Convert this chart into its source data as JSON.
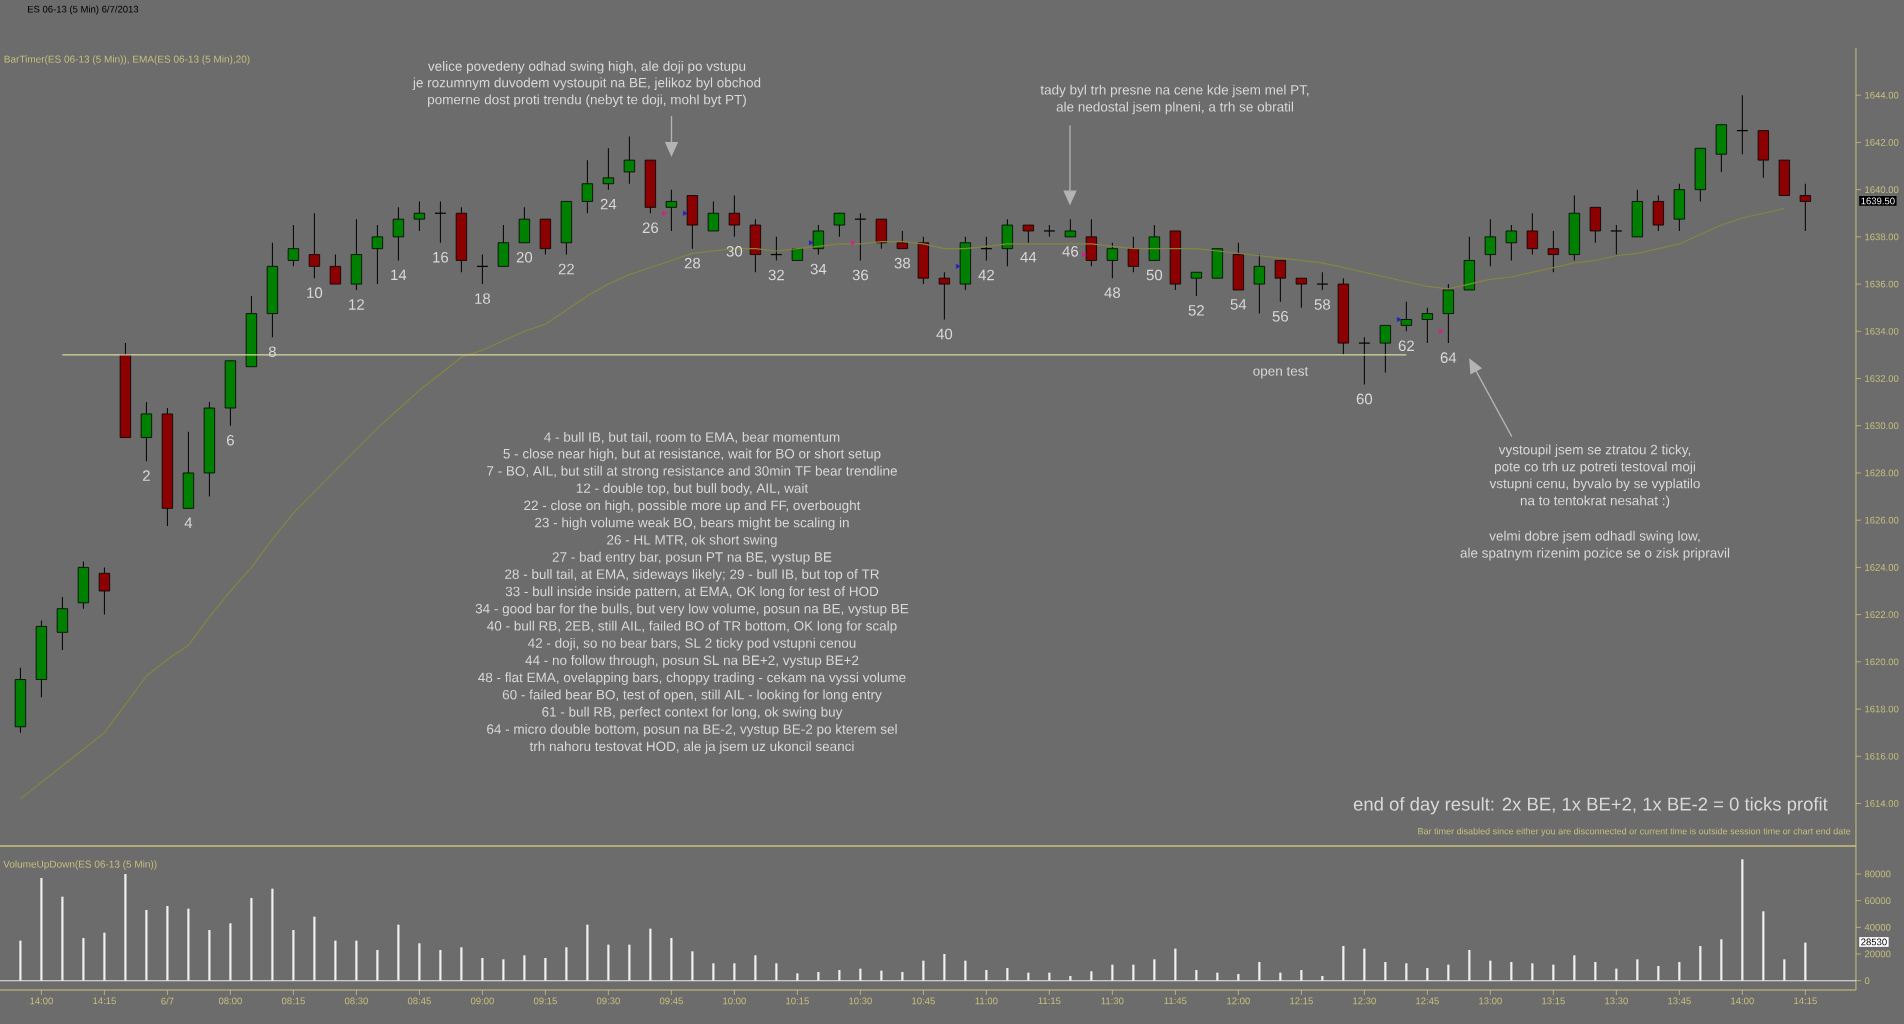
{
  "chart_data": [
    {
      "type": "candlestick",
      "title": "ES 06-13 (5 Min)  6/7/2013",
      "subtitle": "BarTimer(ES 06-13 (5 Min)), EMA(ES 06-13 (5 Min),20)",
      "categories": [
        null,
        null,
        null,
        null,
        null,
        null,
        null,
        null,
        null,
        null,
        null,
        null,
        null,
        null,
        null,
        null,
        null,
        null,
        null,
        null,
        null,
        null,
        null,
        null,
        null,
        null,
        null,
        null,
        null,
        null,
        null,
        null,
        null,
        null,
        null,
        null,
        null,
        null,
        null,
        null,
        null,
        null,
        null,
        null,
        null,
        null,
        null,
        null,
        null,
        null,
        null,
        null,
        null,
        null,
        null,
        null,
        null,
        null,
        null,
        null,
        null,
        null,
        null,
        null,
        null,
        null,
        null,
        null,
        null,
        null,
        null,
        null,
        null,
        null,
        null,
        null,
        null,
        null,
        null,
        null,
        null,
        null,
        null,
        null,
        null,
        null
      ],
      "ohlc": [
        [
          1617.25,
          1619.75,
          1617.0,
          1619.25
        ],
        [
          1619.25,
          1621.75,
          1618.5,
          1621.5
        ],
        [
          1621.25,
          1622.75,
          1620.5,
          1622.25
        ],
        [
          1622.5,
          1624.25,
          1622.25,
          1624.0
        ],
        [
          1623.75,
          1624.0,
          1622.0,
          1623.0
        ],
        [
          1633.0,
          1633.5,
          1629.5,
          1629.5
        ],
        [
          1629.5,
          1631.0,
          1628.5,
          1630.5
        ],
        [
          1630.5,
          1630.75,
          1625.75,
          1626.5
        ],
        [
          1626.5,
          1629.75,
          1626.5,
          1628.0
        ],
        [
          1628.0,
          1631.0,
          1627.0,
          1630.75
        ],
        [
          1630.75,
          1632.75,
          1630.0,
          1632.75
        ],
        [
          1632.5,
          1635.5,
          1632.5,
          1634.75
        ],
        [
          1634.75,
          1637.75,
          1633.75,
          1636.75
        ],
        [
          1637.0,
          1638.5,
          1636.75,
          1637.5
        ],
        [
          1637.25,
          1639.0,
          1636.25,
          1636.75
        ],
        [
          1636.75,
          1637.25,
          1636.0,
          1636.0
        ],
        [
          1636.0,
          1638.75,
          1635.75,
          1637.25
        ],
        [
          1637.5,
          1638.5,
          1636.0,
          1638.0
        ],
        [
          1638.0,
          1639.25,
          1637.0,
          1638.75
        ],
        [
          1638.75,
          1639.5,
          1638.25,
          1639.0
        ],
        [
          1639.0,
          1639.5,
          1637.75,
          1639.0
        ],
        [
          1639.0,
          1639.25,
          1636.5,
          1637.0
        ],
        [
          1636.75,
          1637.25,
          1636.0,
          1636.75
        ],
        [
          1636.75,
          1638.5,
          1636.75,
          1637.75
        ],
        [
          1637.75,
          1639.25,
          1637.75,
          1638.75
        ],
        [
          1638.75,
          1638.75,
          1637.25,
          1637.5
        ],
        [
          1637.75,
          1639.5,
          1637.25,
          1639.5
        ],
        [
          1639.5,
          1641.25,
          1639.0,
          1640.25
        ],
        [
          1640.25,
          1641.75,
          1640.0,
          1640.5
        ],
        [
          1640.75,
          1642.25,
          1640.25,
          1641.25
        ],
        [
          1641.25,
          1641.25,
          1639.0,
          1639.25
        ],
        [
          1639.25,
          1640.0,
          1638.25,
          1639.5
        ],
        [
          1639.75,
          1639.75,
          1637.5,
          1638.5
        ],
        [
          1638.25,
          1639.5,
          1638.25,
          1639.0
        ],
        [
          1639.0,
          1639.75,
          1638.0,
          1638.5
        ],
        [
          1638.5,
          1638.75,
          1636.5,
          1637.25
        ],
        [
          1637.25,
          1638.0,
          1637.0,
          1637.25
        ],
        [
          1637.0,
          1637.5,
          1637.0,
          1637.5
        ],
        [
          1637.5,
          1638.5,
          1637.25,
          1638.25
        ],
        [
          1638.5,
          1639.0,
          1638.0,
          1639.0
        ],
        [
          1638.75,
          1639.0,
          1637.0,
          1638.75
        ],
        [
          1638.75,
          1638.75,
          1637.5,
          1637.75
        ],
        [
          1637.75,
          1638.25,
          1637.5,
          1637.5
        ],
        [
          1637.75,
          1638.0,
          1636.0,
          1636.25
        ],
        [
          1636.25,
          1636.5,
          1634.5,
          1636.0
        ],
        [
          1636.0,
          1638.0,
          1635.75,
          1637.75
        ],
        [
          1637.5,
          1638.0,
          1637.0,
          1637.5
        ],
        [
          1637.5,
          1638.75,
          1636.75,
          1638.5
        ],
        [
          1638.5,
          1638.5,
          1637.75,
          1638.25
        ],
        [
          1638.25,
          1638.5,
          1638.0,
          1638.25
        ],
        [
          1638.0,
          1638.75,
          1638.0,
          1638.25
        ],
        [
          1638.0,
          1638.75,
          1636.75,
          1637.0
        ],
        [
          1637.0,
          1637.75,
          1636.25,
          1637.5
        ],
        [
          1637.5,
          1638.0,
          1636.5,
          1636.75
        ],
        [
          1637.0,
          1638.5,
          1637.0,
          1638.0
        ],
        [
          1638.25,
          1638.25,
          1635.75,
          1636.0
        ],
        [
          1636.25,
          1636.5,
          1635.5,
          1636.5
        ],
        [
          1636.25,
          1637.5,
          1636.25,
          1637.5
        ],
        [
          1637.25,
          1637.75,
          1635.75,
          1635.75
        ],
        [
          1636.0,
          1637.25,
          1634.75,
          1636.75
        ],
        [
          1637.0,
          1637.0,
          1635.25,
          1636.25
        ],
        [
          1636.25,
          1636.25,
          1635.0,
          1636.0
        ],
        [
          1636.0,
          1636.5,
          1635.75,
          1636.0
        ],
        [
          1636.0,
          1636.25,
          1633.0,
          1633.5
        ],
        [
          1633.5,
          1633.75,
          1631.75,
          1633.5
        ],
        [
          1633.5,
          1634.25,
          1632.25,
          1634.25
        ],
        [
          1634.25,
          1635.25,
          1634.0,
          1634.5
        ],
        [
          1634.5,
          1635.0,
          1633.5,
          1634.75
        ],
        [
          1634.75,
          1636.0,
          1633.5,
          1635.75
        ],
        [
          1635.75,
          1638.0,
          1635.75,
          1637.0
        ],
        [
          1637.25,
          1638.75,
          1636.75,
          1638.0
        ],
        [
          1637.75,
          1638.5,
          1637.0,
          1638.25
        ],
        [
          1638.25,
          1639.0,
          1637.25,
          1637.5
        ],
        [
          1637.5,
          1638.25,
          1636.5,
          1637.25
        ],
        [
          1637.25,
          1639.75,
          1637.0,
          1639.0
        ],
        [
          1639.25,
          1639.25,
          1637.75,
          1638.25
        ],
        [
          1638.25,
          1638.5,
          1637.25,
          1638.25
        ],
        [
          1638.0,
          1640.0,
          1638.0,
          1639.5
        ],
        [
          1639.5,
          1639.75,
          1638.25,
          1638.5
        ],
        [
          1638.75,
          1640.25,
          1638.25,
          1640.0
        ],
        [
          1640.0,
          1641.75,
          1639.5,
          1641.75
        ],
        [
          1641.5,
          1642.75,
          1640.75,
          1642.75
        ],
        [
          1642.5,
          1644.0,
          1641.5,
          1642.5
        ],
        [
          1642.5,
          1642.5,
          1640.5,
          1641.25
        ],
        [
          1641.25,
          1641.25,
          1639.75,
          1639.75
        ],
        [
          1639.75,
          1640.25,
          1638.25,
          1639.5
        ]
      ],
      "colors": [
        "#008000",
        "#008000",
        "#008000",
        "#008000",
        "#8b0000",
        "#8b0000",
        "#008000",
        "#8b0000",
        "#008000",
        "#008000",
        "#008000",
        "#008000",
        "#008000",
        "#008000",
        "#8b0000",
        "#8b0000",
        "#008000",
        "#008000",
        "#008000",
        "#008000",
        "#000000",
        "#8b0000",
        "#000000",
        "#008000",
        "#008000",
        "#8b0000",
        "#008000",
        "#008000",
        "#008000",
        "#008000",
        "#8b0000",
        "#008000",
        "#8b0000",
        "#008000",
        "#8b0000",
        "#8b0000",
        "#000000",
        "#008000",
        "#008000",
        "#008000",
        "#000000",
        "#8b0000",
        "#8b0000",
        "#8b0000",
        "#8b0000",
        "#008000",
        "#000000",
        "#008000",
        "#8b0000",
        "#000000",
        "#008000",
        "#8b0000",
        "#008000",
        "#8b0000",
        "#008000",
        "#8b0000",
        "#008000",
        "#008000",
        "#8b0000",
        "#008000",
        "#8b0000",
        "#8b0000",
        "#000000",
        "#8b0000",
        "#000000",
        "#008000",
        "#008000",
        "#008000",
        "#008000",
        "#008000",
        "#008000",
        "#008000",
        "#8b0000",
        "#8b0000",
        "#008000",
        "#8b0000",
        "#000000",
        "#008000",
        "#8b0000",
        "#008000",
        "#008000",
        "#008000",
        "#000000",
        "#8b0000",
        "#8b0000",
        "#8b0000"
      ],
      "value_labels": [
        null,
        null,
        null,
        null,
        null,
        null,
        "2",
        null,
        "4",
        null,
        "6",
        null,
        "8",
        null,
        "10",
        null,
        "12",
        null,
        "14",
        null,
        "16",
        null,
        "18",
        null,
        "20",
        null,
        "22",
        null,
        "24",
        null,
        "26",
        null,
        "28",
        null,
        "30",
        null,
        "32",
        null,
        "34",
        null,
        "36",
        null,
        "38",
        null,
        "40",
        null,
        "42",
        null,
        "44",
        null,
        "46",
        null,
        "48",
        null,
        "50",
        null,
        "52",
        null,
        "54",
        null,
        "56",
        null,
        "58",
        null,
        "60",
        null,
        "62",
        null,
        "64",
        null,
        null,
        null,
        null,
        null,
        null,
        null,
        null,
        null,
        null,
        null,
        null,
        null,
        null,
        null,
        null,
        null
      ],
      "series": [
        {
          "type": "line",
          "color": "#858542",
          "values": [
            1614.2,
            1614.9,
            1615.6,
            1616.3,
            1617.0,
            1618.2,
            1619.4,
            1620.1,
            1620.7,
            1621.9,
            1623.0,
            1624.0,
            1625.2,
            1626.3,
            1627.2,
            1628.1,
            1629.0,
            1629.9,
            1630.7,
            1631.5,
            1632.2,
            1632.9,
            1633.2,
            1633.6,
            1634.0,
            1634.3,
            1634.9,
            1635.5,
            1636.0,
            1636.4,
            1636.7,
            1637.0,
            1637.3,
            1637.4,
            1637.5,
            1637.5,
            1637.4,
            1637.5,
            1637.6,
            1637.7,
            1637.7,
            1637.8,
            1637.8,
            1637.7,
            1637.5,
            1637.5,
            1637.6,
            1637.7,
            1637.7,
            1637.7,
            1637.7,
            1637.7,
            1637.6,
            1637.5,
            1637.5,
            1637.5,
            1637.5,
            1637.4,
            1637.3,
            1637.2,
            1637.1,
            1637.0,
            1636.9,
            1636.7,
            1636.5,
            1636.3,
            1636.1,
            1635.9,
            1635.8,
            1636.0,
            1636.2,
            1636.3,
            1636.5,
            1636.7,
            1636.9,
            1637.0,
            1637.2,
            1637.3,
            1637.5,
            1637.7,
            1638.1,
            1638.5,
            1638.8,
            1639.0,
            1639.2,
            null
          ]
        },
        {
          "type": "line",
          "color": "#d8d8a0",
          "values": [
            null,
            null,
            1633.0,
            1633.0,
            1633.0,
            1633.0,
            1633.0,
            1633.0,
            1633.0,
            1633.0,
            1633.0,
            1633.0,
            1633.0,
            1633.0,
            1633.0,
            1633.0,
            1633.0,
            1633.0,
            1633.0,
            1633.0,
            1633.0,
            1633.0,
            1633.0,
            1633.0,
            1633.0,
            1633.0,
            1633.0,
            1633.0,
            1633.0,
            1633.0,
            1633.0,
            1633.0,
            1633.0,
            1633.0,
            1633.0,
            1633.0,
            1633.0,
            1633.0,
            1633.0,
            1633.0,
            1633.0,
            1633.0,
            1633.0,
            1633.0,
            1633.0,
            1633.0,
            1633.0,
            1633.0,
            1633.0,
            1633.0,
            1633.0,
            1633.0,
            1633.0,
            1633.0,
            1633.0,
            1633.0,
            1633.0,
            1633.0,
            1633.0,
            1633.0,
            1633.0,
            1633.0,
            1633.0,
            1633.0,
            1633.0,
            1633.0,
            1633.0,
            null,
            null,
            null,
            null,
            null,
            null,
            null,
            null,
            null,
            null,
            null,
            null,
            null,
            null,
            null,
            null,
            null,
            null,
            null
          ]
        },
        {
          "type": "scatter",
          "color": "#e0188f",
          "marker": "triangle",
          "values": [
            null,
            null,
            null,
            null,
            null,
            null,
            null,
            null,
            null,
            null,
            null,
            null,
            null,
            null,
            null,
            null,
            null,
            null,
            null,
            null,
            null,
            null,
            null,
            null,
            null,
            null,
            null,
            null,
            null,
            null,
            null,
            1639.0,
            null,
            null,
            null,
            null,
            null,
            null,
            null,
            null,
            1637.75,
            null,
            null,
            null,
            null,
            null,
            null,
            null,
            null,
            null,
            null,
            1637.25,
            null,
            null,
            null,
            null,
            null,
            null,
            null,
            null,
            null,
            null,
            null,
            null,
            null,
            null,
            null,
            null,
            1634.0,
            null,
            null,
            null,
            null,
            null,
            null,
            null,
            null,
            null,
            null,
            null,
            null,
            null,
            null,
            null,
            null,
            null
          ]
        },
        {
          "type": "scatter",
          "color": "#1c1cd0",
          "marker": "triangle",
          "values": [
            null,
            null,
            null,
            null,
            null,
            null,
            null,
            null,
            null,
            null,
            null,
            null,
            null,
            null,
            null,
            null,
            null,
            null,
            null,
            null,
            null,
            null,
            null,
            null,
            null,
            null,
            null,
            null,
            null,
            null,
            null,
            null,
            1639.0,
            null,
            null,
            null,
            null,
            null,
            1637.75,
            null,
            null,
            null,
            null,
            null,
            null,
            1636.75,
            null,
            null,
            null,
            null,
            null,
            null,
            null,
            null,
            null,
            null,
            null,
            null,
            null,
            null,
            null,
            null,
            null,
            null,
            null,
            null,
            1634.5,
            null,
            null,
            null,
            null,
            null,
            null,
            null,
            null,
            null,
            null,
            null,
            null,
            null,
            null,
            null,
            null,
            null,
            null,
            null
          ]
        }
      ],
      "ylim": [
        1612.2,
        1646
      ],
      "yticks": [
        {
          "value": 1614,
          "label": "1614.00"
        },
        {
          "value": 1616,
          "label": "1616.00"
        },
        {
          "value": 1618,
          "label": "1618.00"
        },
        {
          "value": 1620,
          "label": "1620.00"
        },
        {
          "value": 1622,
          "label": "1622.00"
        },
        {
          "value": 1624,
          "label": "1624.00"
        },
        {
          "value": 1626,
          "label": "1626.00"
        },
        {
          "value": 1628,
          "label": "1628.00"
        },
        {
          "value": 1630,
          "label": "1630.00"
        },
        {
          "value": 1632,
          "label": "1632.00"
        },
        {
          "value": 1634,
          "label": "1634.00"
        },
        {
          "value": 1636,
          "label": "1636.00"
        },
        {
          "value": 1638,
          "label": "1638.00"
        },
        {
          "value": 1640,
          "label": "1640.00"
        },
        {
          "value": 1642,
          "label": "1642.00"
        },
        {
          "value": 1644,
          "label": "1644.00"
        }
      ],
      "tick_labels": "y",
      "annotations": [
        "velice povedeny odhad swing high, ale doji po vstupu",
        "je rozumnym duvodem vystoupit na BE, jelikoz byl obchod",
        "pomerne dost proti trendu  (nebyt te doji, mohl byt PT)",
        "tady byl trh presne na cene kde jsem mel PT,",
        "ale nedostal jsem plneni, a trh se obratil",
        "4 - bull IB, but tail, room to EMA, bear momentum",
        "5 - close near high, but at resistance, wait for BO or short setup",
        "7 - BO, AIL, but still at strong resistance and 30min TF bear trendline",
        "12 - double top, but bull body, AIL, wait",
        "22 - close on high, possible more up and FF, overbought",
        "23 - high volume weak BO, bears might be scaling in",
        "26 - HL MTR, ok short swing",
        "27 - bad entry bar, posun PT na BE, vystup BE",
        "28 - bull tail, at EMA, sideways likely; 29 - bull IB, but top of TR",
        "33 - bull inside inside pattern, at EMA, OK  long for test of HOD",
        "34 - good bar for the bulls, but very low volume, posun na BE, vystup BE",
        "40 - bull RB, 2EB, still AIL, failed BO of TR bottom, OK long for scalp",
        "42 - doji, so no bear bars, SL 2 ticky pod vstupni cenou",
        "44 - no follow through, posun SL na BE+2, vystup BE+2",
        "48 - flat EMA, ovelapping bars, choppy trading - cekam na vyssi volume",
        "60 - failed bear BO, test of open, still AIL - looking for long entry",
        "61 - bull RB, perfect context for long, ok swing buy",
        "64 - micro double bottom, posun na BE-2, vystup BE-2 po kterem sel",
        "trh nahoru testovat HOD, ale ja jsem uz ukoncil seanci",
        "vystoupil jsem se ztratou 2 ticky,",
        "pote co trh uz potreti testoval moji",
        "vstupni cenu, byvalo by se vyplatilo",
        "na to tentokrat nesahat :)",
        "velmi dobre jsem odhadl swing low,",
        "ale spatnym rizenim pozice se o zisk pripravil",
        "open test",
        "end of day result: 2x BE, 1x BE+2, 1x BE-2 = 0 ticks profit",
        "Bar timer disabled since either you are disconnected or current time is outside session time or chart end date",
        "1639.50"
      ]
    },
    {
      "type": "bar",
      "title": "VolumeUpDown(ES 06-13 (5 Min))",
      "categories": [
        null,
        "14:00",
        null,
        null,
        "14:15",
        null,
        null,
        "6/7",
        null,
        null,
        "08:00",
        null,
        null,
        "08:15",
        null,
        null,
        "08:30",
        null,
        null,
        "08:45",
        null,
        null,
        "09:00",
        null,
        null,
        "09:15",
        null,
        null,
        "09:30",
        null,
        null,
        "09:45",
        null,
        null,
        "10:00",
        null,
        null,
        "10:15",
        null,
        null,
        "10:30",
        null,
        null,
        "10:45",
        null,
        null,
        "11:00",
        null,
        null,
        "11:15",
        null,
        null,
        "11:30",
        null,
        null,
        "11:45",
        null,
        null,
        "12:00",
        null,
        null,
        "12:15",
        null,
        null,
        "12:30",
        null,
        null,
        "12:45",
        null,
        null,
        "13:00",
        null,
        null,
        "13:15",
        null,
        null,
        "13:30",
        null,
        null,
        "13:45",
        null,
        null,
        "14:00",
        null,
        null,
        "14:15"
      ],
      "values": [
        30000,
        77000,
        63000,
        32000,
        36000,
        80000,
        53000,
        56000,
        54000,
        38000,
        43000,
        62000,
        69000,
        38000,
        48000,
        30000,
        30000,
        23000,
        42000,
        28000,
        23000,
        25000,
        17000,
        16000,
        19000,
        17000,
        25000,
        42000,
        27000,
        27000,
        39000,
        32000,
        22000,
        13000,
        13000,
        19000,
        13000,
        5500,
        6500,
        8000,
        9000,
        7500,
        6500,
        15000,
        20000,
        15000,
        8000,
        9500,
        6000,
        6000,
        3500,
        7000,
        12000,
        12000,
        16000,
        24000,
        8000,
        6000,
        5000,
        14000,
        6000,
        8000,
        3500,
        26000,
        24000,
        14000,
        13000,
        9500,
        12000,
        23000,
        15000,
        14000,
        13000,
        12000,
        19000,
        14000,
        9000,
        16000,
        11000,
        14000,
        26000,
        31000,
        91000,
        52000,
        16000,
        28530
      ],
      "color": "#f0f0f0",
      "ylim": [
        -7000,
        101000
      ],
      "yticks": [
        0,
        20000,
        40000,
        60000,
        80000
      ],
      "ref_lines": [
        {
          "axis": "y",
          "value": 0,
          "color": "#e8e8e8"
        }
      ],
      "annotations": [
        "28530"
      ]
    }
  ]
}
